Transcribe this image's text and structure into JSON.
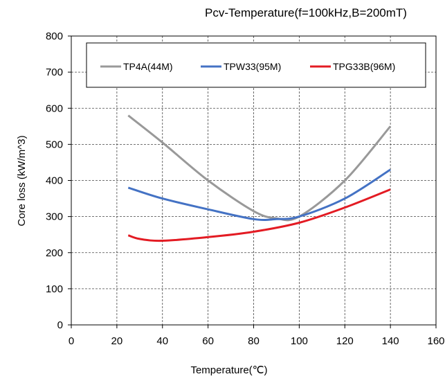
{
  "chart_data": {
    "type": "line",
    "title": "Pcv-Temperature(f=100kHz,B=200mT)",
    "xlabel": "Temperature(℃)",
    "ylabel": "Core loss (kW/m^3)",
    "xlim": [
      0,
      160
    ],
    "ylim": [
      0,
      800
    ],
    "xticks": [
      "0",
      "20",
      "40",
      "60",
      "80",
      "100",
      "120",
      "140",
      "160"
    ],
    "yticks": [
      "0",
      "100",
      "200",
      "300",
      "400",
      "500",
      "600",
      "700",
      "800"
    ],
    "grid": true,
    "legend_position": "top",
    "series": [
      {
        "name": "TP4A(44M)",
        "color": "#999999",
        "x": [
          25,
          40,
          60,
          80,
          90,
          100,
          120,
          140
        ],
        "y": [
          580,
          505,
          400,
          315,
          295,
          300,
          400,
          550
        ]
      },
      {
        "name": "TPW33(95M)",
        "color": "#4472c4",
        "x": [
          25,
          40,
          60,
          80,
          90,
          100,
          120,
          140
        ],
        "y": [
          380,
          350,
          320,
          293,
          293,
          300,
          350,
          430
        ]
      },
      {
        "name": "TPG33B(96M)",
        "color": "#e31b23",
        "x": [
          25,
          30,
          40,
          60,
          80,
          100,
          120,
          140
        ],
        "y": [
          248,
          238,
          233,
          243,
          258,
          283,
          325,
          375
        ]
      }
    ]
  }
}
